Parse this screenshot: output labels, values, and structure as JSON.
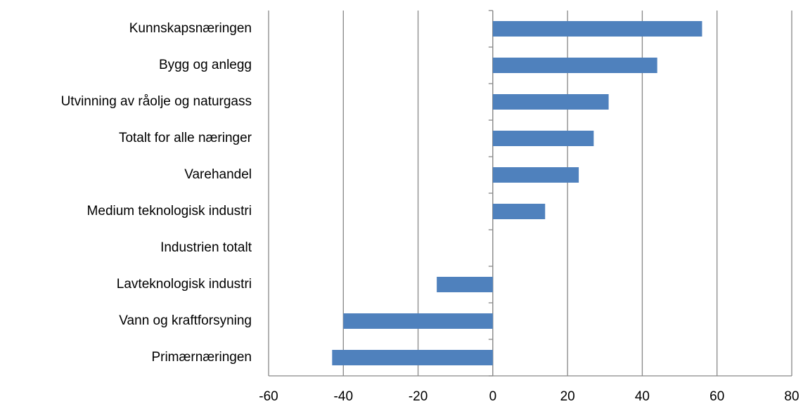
{
  "chart_data": {
    "type": "barh",
    "categories": [
      "Kunnskapsnæringen",
      "Bygg og anlegg",
      "Utvinning av råolje og naturgass",
      "Totalt for alle næringer",
      "Varehandel",
      "Medium teknologisk industri",
      "Industrien totalt",
      "Lavteknologisk industri",
      "Vann og kraftforsyning",
      "Primærnæringen"
    ],
    "values": [
      56,
      44,
      31,
      27,
      23,
      14,
      0,
      -15,
      -40,
      -43
    ],
    "color": "#4f81bd",
    "xlim": [
      -60,
      80
    ],
    "xticks": [
      -60,
      -40,
      -20,
      0,
      20,
      40,
      60,
      80
    ],
    "grid": true
  }
}
